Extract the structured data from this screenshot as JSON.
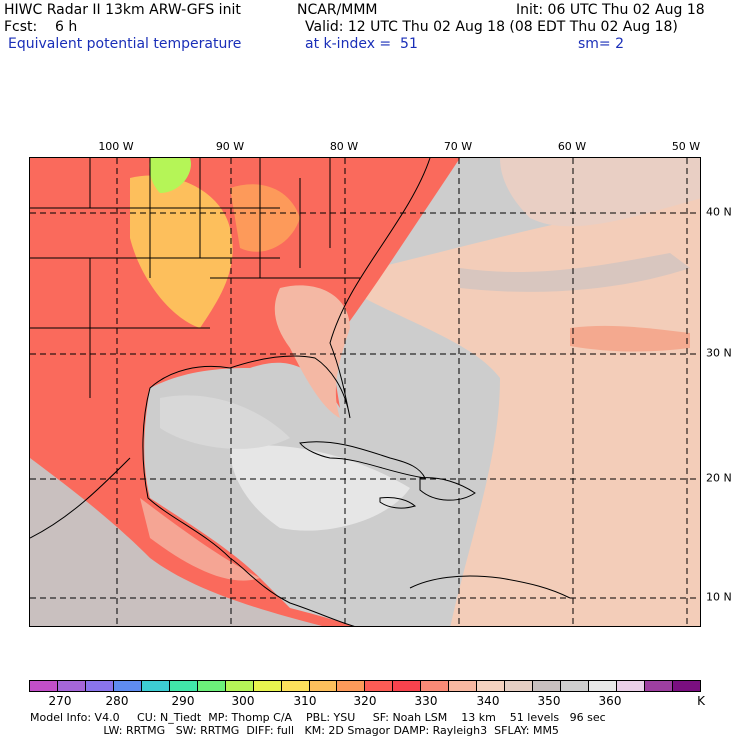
{
  "header": {
    "line1_left": "HIWC Radar II 13km ARW-GFS init",
    "line1_mid": "NCAR/MMM",
    "line1_right": "Init: 06 UTC Thu 02 Aug 18",
    "line2_left": "Fcst:    6 h",
    "line2_right": "Valid: 12 UTC Thu 02 Aug 18 (08 EDT Thu 02 Aug 18)",
    "line3_left": "Equivalent potential temperature",
    "line3_mid": "at k-index =  51",
    "line3_right": "sm= 2"
  },
  "map": {
    "lon_labels": [
      "100 W",
      "90 W",
      "80 W",
      "70 W",
      "60 W",
      "50 W"
    ],
    "lat_labels": [
      "40 N",
      "30 N",
      "20 N",
      "10 N"
    ]
  },
  "colorbar": {
    "unit": "K",
    "labels": [
      "270",
      "280",
      "290",
      "300",
      "310",
      "320",
      "330",
      "340",
      "350",
      "360"
    ],
    "colors": [
      "#c24fc8",
      "#a566d8",
      "#8a74ec",
      "#5f8cf0",
      "#3dcdd3",
      "#41e6a8",
      "#6cf07a",
      "#b5f557",
      "#e8f54f",
      "#fde15c",
      "#fdbf5c",
      "#fd9a5a",
      "#fc5c55",
      "#f7434d",
      "#fa8a76",
      "#f8b8a1",
      "#f5d2bf",
      "#e6cfc4",
      "#c9c0bf",
      "#cfcfcf",
      "#e8e8e8",
      "#ead0e8",
      "#9e3fa0",
      "#7a0f80"
    ]
  },
  "footer": {
    "line1": "Model Info: V4.0     CU: N_Tiedt  MP: Thomp C/A    PBL: YSU     SF: Noah LSM    13 km    51 levels   96 sec",
    "line2": "                     LW: RRTMG   SW: RRTMG  DIFF: full   KM: 2D Smagor DAMP: Rayleigh3  SFLAY: MM5"
  }
}
